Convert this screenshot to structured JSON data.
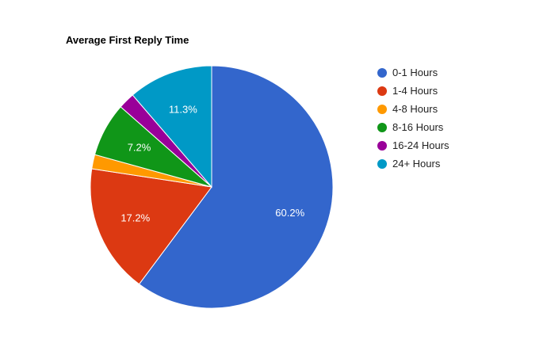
{
  "chart_data": {
    "type": "pie",
    "title": "Average First Reply Time",
    "legend_position": "right",
    "start_angle_deg": 0,
    "direction": "clockwise",
    "slices": [
      {
        "label": "0-1 Hours",
        "value": 60.2,
        "display": "60.2%",
        "color": "#3366cc"
      },
      {
        "label": "1-4 Hours",
        "value": 17.2,
        "display": "17.2%",
        "color": "#dc3912"
      },
      {
        "label": "4-8 Hours",
        "value": 1.9,
        "display": "",
        "color": "#ff9900"
      },
      {
        "label": "8-16 Hours",
        "value": 7.2,
        "display": "7.2%",
        "color": "#109618"
      },
      {
        "label": "16-24 Hours",
        "value": 2.2,
        "display": "",
        "color": "#990099"
      },
      {
        "label": "24+ Hours",
        "value": 11.3,
        "display": "11.3%",
        "color": "#0099c6"
      }
    ]
  }
}
